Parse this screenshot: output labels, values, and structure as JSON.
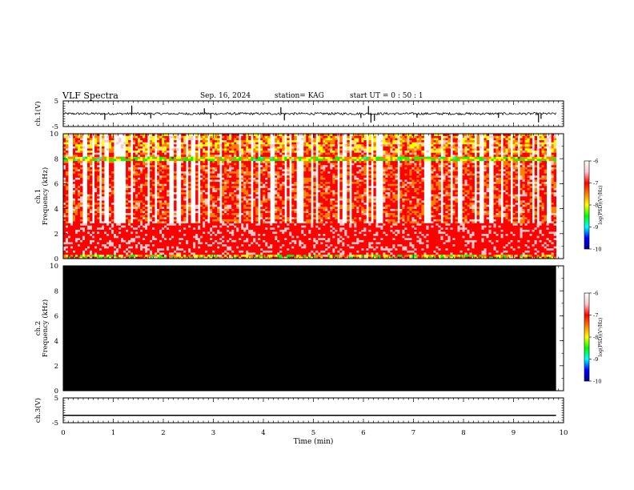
{
  "header": {
    "title": "VLF Spectra",
    "date": "Sep. 16, 2024",
    "station": "station= KAG",
    "start_ut": "start UT =  0 : 50 : 1"
  },
  "colorbar": {
    "label": "log(PSD)(V²/Hz)",
    "ticks": [
      "-6",
      "-7",
      "-8",
      "-9",
      "-10"
    ],
    "range": [
      -10,
      -6
    ],
    "colors": [
      "#00008b",
      "#0000ff",
      "#00ffff",
      "#00ff00",
      "#ffff00",
      "#ff8000",
      "#ff0000",
      "#ffc8c8",
      "#ffffff"
    ]
  },
  "chart_data": [
    {
      "panel": "ch1-waveform",
      "type": "line",
      "ylabel": "ch.1(V)",
      "ylim": [
        -5,
        5
      ],
      "yticks": [
        "5",
        "-5"
      ],
      "xlim": [
        0,
        10
      ],
      "baseline_level": 0,
      "description_series": "noisy waveform near 0 V with sporadic spikes",
      "spikes": [
        {
          "x": 1.37,
          "y": 3.2
        },
        {
          "x": 0.83,
          "y": -2.4
        },
        {
          "x": 1.75,
          "y": -1.8
        },
        {
          "x": 2.82,
          "y": 2.1
        },
        {
          "x": 2.95,
          "y": -2.0
        },
        {
          "x": 4.35,
          "y": 2.5
        },
        {
          "x": 4.42,
          "y": -2.6
        },
        {
          "x": 5.95,
          "y": -1.7
        },
        {
          "x": 6.1,
          "y": 3.0
        },
        {
          "x": 6.15,
          "y": -3.5
        },
        {
          "x": 6.22,
          "y": -2.8
        },
        {
          "x": 7.07,
          "y": -1.5
        },
        {
          "x": 8.7,
          "y": -1.6
        },
        {
          "x": 9.5,
          "y": -3.4
        },
        {
          "x": 9.55,
          "y": -2.0
        }
      ]
    },
    {
      "panel": "ch1-spectrogram",
      "type": "heatmap",
      "ylabel": "ch.1 Frequency (kHz)",
      "ylim": [
        0,
        10
      ],
      "yticks": [
        "0",
        "2",
        "4",
        "6",
        "8",
        "10"
      ],
      "xlim": [
        0,
        9.85
      ],
      "features": {
        "strong_band_kHz": [
          0.3,
          2.8
        ],
        "line_at_kHz": 8.0,
        "upper_band_kHz": [
          8.5,
          10
        ]
      }
    },
    {
      "panel": "ch2-spectrogram",
      "type": "heatmap",
      "ylabel": "ch.2 Frequency (kHz)",
      "ylim": [
        0,
        10
      ],
      "yticks": [
        "0",
        "2",
        "4",
        "6",
        "8",
        "10"
      ],
      "xlim": [
        0,
        9.85
      ],
      "fill": "#000000"
    },
    {
      "panel": "ch3-waveform",
      "type": "line",
      "ylabel": "ch.3(V)",
      "ylim": [
        -5,
        5
      ],
      "yticks": [
        "5",
        "-5"
      ],
      "xlim": [
        0,
        9.85
      ],
      "x": [
        0,
        9.85
      ],
      "y": [
        -2.0,
        -2.0
      ]
    }
  ],
  "xaxis": {
    "label": "Time (min)",
    "ticks": [
      "0",
      "1",
      "2",
      "3",
      "4",
      "5",
      "6",
      "7",
      "8",
      "9",
      "10"
    ],
    "range": [
      0,
      10
    ]
  }
}
